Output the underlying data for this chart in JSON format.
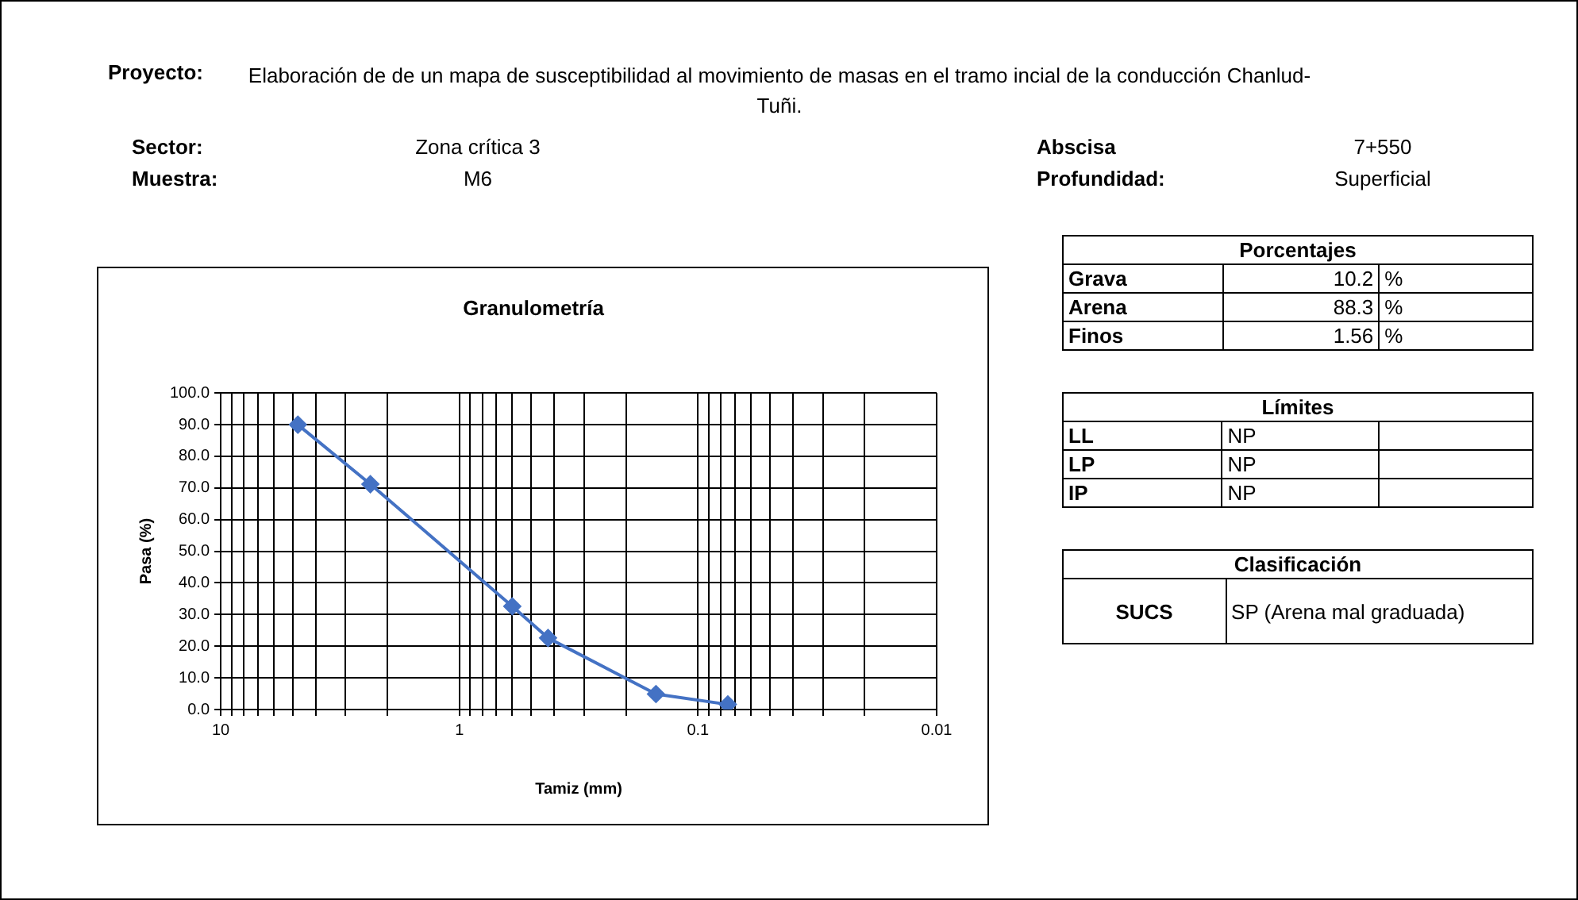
{
  "chart_data": [
    {
      "type": "other",
      "annotations": [
        "Proyecto:",
        "Elaboración de de un mapa de susceptibilidad al movimiento de masas en el tramo incial de la conducción Chanlud-Tuñi.",
        "Sector:",
        "Zona crítica 3",
        "Abscisa",
        "7+550",
        "Muestra:",
        "M6",
        "Profundidad:",
        "Superficial"
      ]
    },
    {
      "type": "line",
      "title": "Granulometría",
      "xlabel": "Tamiz (mm)",
      "ylabel": "Pasa (%)",
      "log": "x",
      "color": "#4472c4",
      "marker": "diamond",
      "grid": true,
      "legend": false,
      "x": [
        4.75,
        2.36,
        0.6,
        0.425,
        0.15,
        0.075
      ],
      "values": [
        90.0,
        71.2,
        32.6,
        22.6,
        4.9,
        1.6
      ],
      "xlim": [
        10,
        0.01
      ],
      "xticks": [
        10,
        {
          "value": 9,
          "label": null
        },
        {
          "value": 8,
          "label": null
        },
        {
          "value": 7,
          "label": null
        },
        {
          "value": 6,
          "label": null
        },
        {
          "value": 5,
          "label": null
        },
        {
          "value": 4,
          "label": null
        },
        {
          "value": 3,
          "label": null
        },
        {
          "value": 2,
          "label": null
        },
        1,
        {
          "value": 0.9,
          "label": null
        },
        {
          "value": 0.8,
          "label": null
        },
        {
          "value": 0.7,
          "label": null
        },
        {
          "value": 0.6,
          "label": null
        },
        {
          "value": 0.5,
          "label": null
        },
        {
          "value": 0.4,
          "label": null
        },
        {
          "value": 0.3,
          "label": null
        },
        {
          "value": 0.2,
          "label": null
        },
        0.1,
        {
          "value": 0.09,
          "label": null
        },
        {
          "value": 0.08,
          "label": null
        },
        {
          "value": 0.07,
          "label": null
        },
        {
          "value": 0.06,
          "label": null
        },
        {
          "value": 0.05,
          "label": null
        },
        {
          "value": 0.04,
          "label": null
        },
        {
          "value": 0.03,
          "label": null
        },
        {
          "value": 0.02,
          "label": null
        },
        0.01
      ],
      "ylim": [
        0,
        100
      ],
      "yticks": [
        {
          "value": 0,
          "label": "0.0"
        },
        {
          "value": 10,
          "label": "10.0"
        },
        {
          "value": 20,
          "label": "20.0"
        },
        {
          "value": 30,
          "label": "30.0"
        },
        {
          "value": 40,
          "label": "40.0"
        },
        {
          "value": 50,
          "label": "50.0"
        },
        {
          "value": 60,
          "label": "60.0"
        },
        {
          "value": 70,
          "label": "70.0"
        },
        {
          "value": 80,
          "label": "80.0"
        },
        {
          "value": 90,
          "label": "90.0"
        },
        {
          "value": 100,
          "label": "100.0"
        }
      ]
    },
    {
      "type": "other",
      "annotations": [
        "Porcentajes",
        "Grava",
        "10.2",
        "%",
        "Arena",
        "88.3",
        "%",
        "Finos",
        "1.56",
        "%",
        "Límites",
        "LL",
        "NP",
        "LP",
        "NP",
        "IP",
        "NP",
        "Clasificación",
        "SUCS",
        "SP (Arena mal graduada)"
      ]
    }
  ]
}
